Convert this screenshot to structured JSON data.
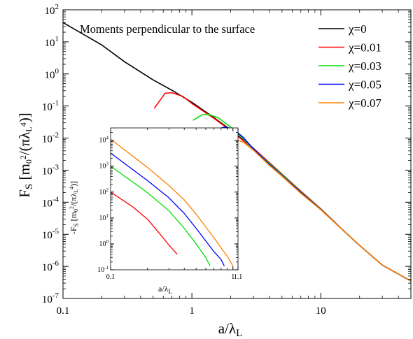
{
  "chart_data": [
    {
      "type": "line",
      "xlabel": "a/λ_L",
      "ylabel": "F_s [m_0^2/(πλ_L^4)]",
      "xscale": "log",
      "yscale": "log",
      "xlim": [
        0.1,
        50
      ],
      "ylim": [
        1e-07,
        100
      ],
      "x_ticks": [
        {
          "value": 0.1,
          "label": "0.1"
        },
        {
          "value": 1,
          "label": "1"
        },
        {
          "value": 10,
          "label": "10"
        }
      ],
      "y_ticks": [
        {
          "value": 1e-07,
          "mant": "10",
          "exp": "-7"
        },
        {
          "value": 1e-06,
          "mant": "10",
          "exp": "-6"
        },
        {
          "value": 1e-05,
          "mant": "10",
          "exp": "-5"
        },
        {
          "value": 0.0001,
          "mant": "10",
          "exp": "-4"
        },
        {
          "value": 0.001,
          "mant": "10",
          "exp": "-3"
        },
        {
          "value": 0.01,
          "mant": "10",
          "exp": "-2"
        },
        {
          "value": 0.1,
          "mant": "10",
          "exp": "-1"
        },
        {
          "value": 1,
          "mant": "10",
          "exp": "0"
        },
        {
          "value": 10,
          "mant": "10",
          "exp": "1"
        },
        {
          "value": 100,
          "mant": "10",
          "exp": "2"
        }
      ],
      "annotation": "Moments perpendicular to the surface",
      "legend_position": "top-right",
      "series": [
        {
          "name": "χ=0",
          "color": "#000000",
          "points": [
            [
              0.1,
              40
            ],
            [
              0.2,
              8
            ],
            [
              0.3,
              2.4
            ],
            [
              0.5,
              0.65
            ],
            [
              0.7,
              0.31
            ],
            [
              1,
              0.13
            ],
            [
              1.5,
              0.042
            ],
            [
              2,
              0.018
            ],
            [
              3,
              0.0048
            ],
            [
              4,
              0.0017
            ],
            [
              5,
              0.00075
            ],
            [
              7,
              0.00022
            ],
            [
              10,
              6.2e-05
            ],
            [
              15,
              1.3e-05
            ],
            [
              20,
              4.5e-06
            ],
            [
              30,
              1.1e-06
            ],
            [
              50,
              3.5e-07
            ]
          ]
        },
        {
          "name": "χ=0.01",
          "color": "#ff0000",
          "points": [
            [
              0.51,
              0.085
            ],
            [
              0.62,
              0.25
            ],
            [
              0.7,
              0.26
            ],
            [
              0.85,
              0.2
            ],
            [
              1,
              0.12
            ],
            [
              1.5,
              0.04
            ],
            [
              2,
              0.017
            ],
            [
              3,
              0.0047
            ],
            [
              4,
              0.0017
            ],
            [
              5,
              0.00074
            ],
            [
              7,
              0.00022
            ],
            [
              10,
              6.2e-05
            ],
            [
              15,
              1.3e-05
            ],
            [
              20,
              4.5e-06
            ],
            [
              30,
              1.1e-06
            ],
            [
              50,
              3.5e-07
            ]
          ]
        },
        {
          "name": "χ=0.03",
          "color": "#00e000",
          "points": [
            [
              1.02,
              0.036
            ],
            [
              1.2,
              0.053
            ],
            [
              1.35,
              0.055
            ],
            [
              1.6,
              0.043
            ],
            [
              2,
              0.022
            ],
            [
              2.5,
              0.0096
            ],
            [
              3,
              0.0045
            ],
            [
              4,
              0.0016
            ],
            [
              5,
              0.00072
            ],
            [
              7,
              0.00021
            ],
            [
              10,
              6e-05
            ],
            [
              15,
              1.3e-05
            ],
            [
              20,
              4.5e-06
            ],
            [
              30,
              1.1e-06
            ],
            [
              50,
              3.5e-07
            ]
          ]
        },
        {
          "name": "χ=0.05",
          "color": "#0000ff",
          "points": [
            [
              1.38,
              0.0045
            ],
            [
              1.5,
              0.012
            ],
            [
              1.65,
              0.02
            ],
            [
              1.8,
              0.022
            ],
            [
              2.1,
              0.019
            ],
            [
              2.5,
              0.0105
            ],
            [
              3,
              0.0046
            ],
            [
              4,
              0.0015
            ],
            [
              5,
              0.00068
            ],
            [
              7,
              0.0002
            ],
            [
              10,
              5.9e-05
            ],
            [
              15,
              1.3e-05
            ],
            [
              20,
              4.5e-06
            ],
            [
              30,
              1.1e-06
            ],
            [
              50,
              3.5e-07
            ]
          ]
        },
        {
          "name": "χ=0.07",
          "color": "#ff8000",
          "points": [
            [
              1.72,
              0.0055
            ],
            [
              1.85,
              0.0085
            ],
            [
              2.05,
              0.0095
            ],
            [
              2.5,
              0.0075
            ],
            [
              3,
              0.0042
            ],
            [
              4,
              0.0014
            ],
            [
              5,
              0.00065
            ],
            [
              7,
              0.00019
            ],
            [
              10,
              5.8e-05
            ],
            [
              15,
              1.3e-05
            ],
            [
              20,
              4.5e-06
            ],
            [
              30,
              1.1e-06
            ],
            [
              50,
              3.5e-07
            ]
          ]
        }
      ]
    },
    {
      "type": "line",
      "xlabel": "a/λ_L",
      "ylabel": "-F_s [m_0^2/(πλ_L^4)]",
      "xscale": "log",
      "yscale": "log",
      "xlim": [
        0.1,
        1.1
      ],
      "ylim": [
        0.1,
        30000
      ],
      "x_ticks": [
        {
          "value": 0.1,
          "label": "0.1"
        },
        {
          "value": 1,
          "label": "1"
        },
        {
          "value": 1.1,
          "label": "1.1"
        }
      ],
      "y_ticks": [
        {
          "value": 0.1,
          "mant": "10",
          "exp": "-1"
        },
        {
          "value": 1,
          "mant": "10",
          "exp": "0"
        },
        {
          "value": 10,
          "mant": "10",
          "exp": "1"
        },
        {
          "value": 100,
          "mant": "10",
          "exp": "2"
        },
        {
          "value": 1000,
          "mant": "10",
          "exp": "3"
        },
        {
          "value": 10000,
          "mant": "10",
          "exp": "4"
        }
      ],
      "series": [
        {
          "color": "#ff0000",
          "points": [
            [
              0.1,
              100
            ],
            [
              0.15,
              28
            ],
            [
              0.2,
              9
            ],
            [
              0.25,
              2.6
            ],
            [
              0.3,
              0.9
            ],
            [
              0.35,
              0.4
            ]
          ]
        },
        {
          "color": "#00e000",
          "points": [
            [
              0.1,
              1000
            ],
            [
              0.2,
              95
            ],
            [
              0.3,
              19
            ],
            [
              0.4,
              4
            ],
            [
              0.5,
              1
            ],
            [
              0.6,
              0.3
            ],
            [
              0.65,
              0.14
            ]
          ]
        },
        {
          "color": "#0000ff",
          "points": [
            [
              0.1,
              3200
            ],
            [
              0.2,
              280
            ],
            [
              0.3,
              60
            ],
            [
              0.4,
              15
            ],
            [
              0.5,
              4
            ],
            [
              0.6,
              1.3
            ],
            [
              0.7,
              0.5
            ],
            [
              0.8,
              0.25
            ],
            [
              0.85,
              0.14
            ]
          ]
        },
        {
          "color": "#ff8000",
          "points": [
            [
              0.1,
              11000
            ],
            [
              0.2,
              900
            ],
            [
              0.3,
              180
            ],
            [
              0.4,
              50
            ],
            [
              0.5,
              14
            ],
            [
              0.6,
              4.5
            ],
            [
              0.7,
              1.7
            ],
            [
              0.8,
              0.7
            ],
            [
              0.9,
              0.33
            ],
            [
              1.0,
              0.14
            ]
          ]
        }
      ]
    }
  ]
}
